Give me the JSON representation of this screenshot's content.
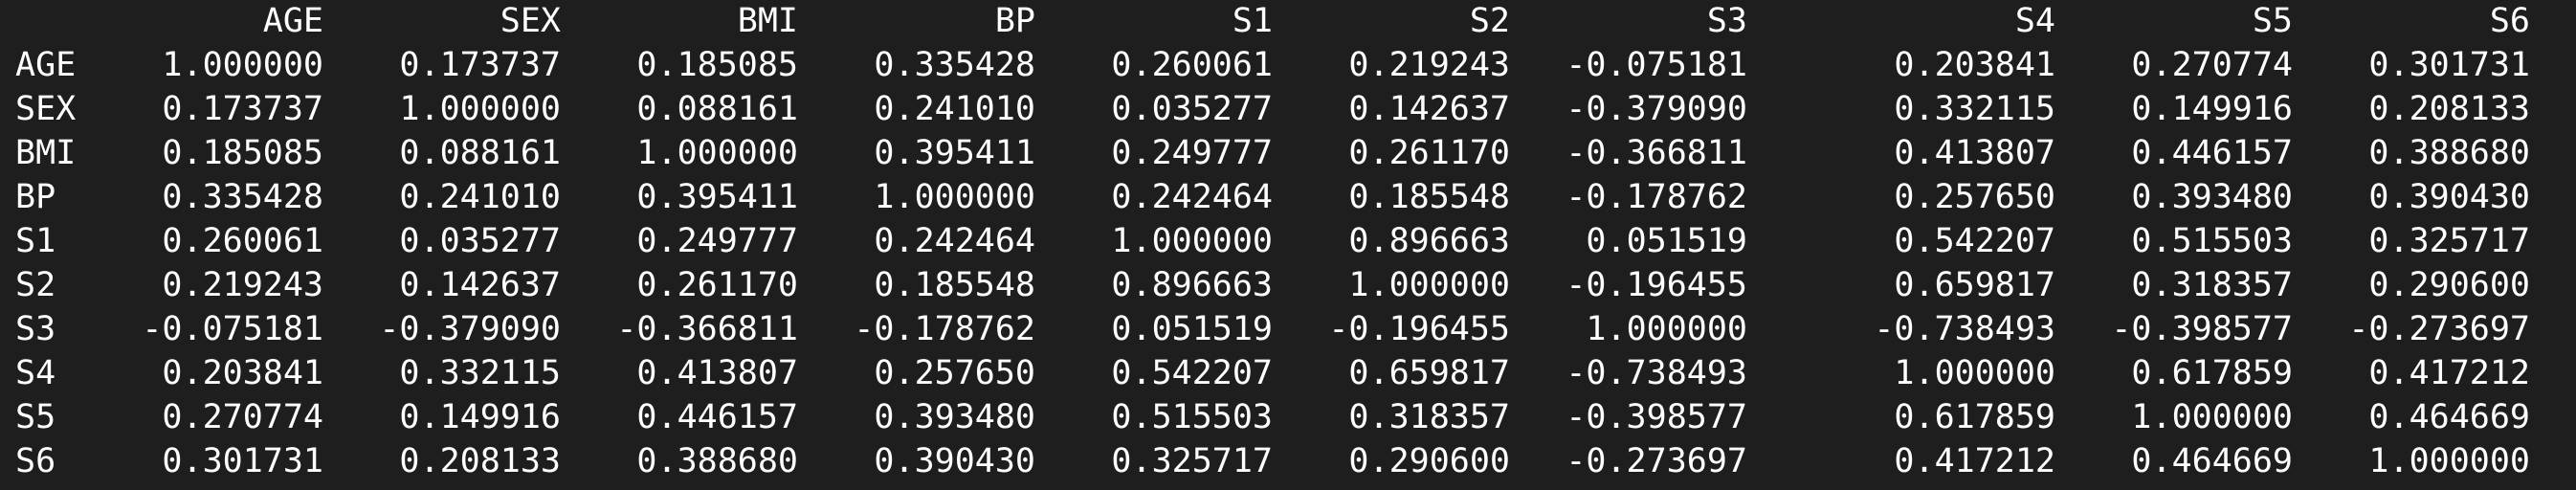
{
  "terminal": {
    "background": "#1e1e1e",
    "foreground": "#ffffff"
  },
  "table": {
    "columns": [
      "AGE",
      "SEX",
      "BMI",
      "BP",
      "S1",
      "S2",
      "S3",
      "S4",
      "S5",
      "S6"
    ],
    "rows": [
      {
        "label": "AGE",
        "values": [
          "1.000000",
          "0.173737",
          "0.185085",
          "0.335428",
          "0.260061",
          "0.219243",
          "-0.075181",
          "0.203841",
          "0.270774",
          "0.301731"
        ]
      },
      {
        "label": "SEX",
        "values": [
          "0.173737",
          "1.000000",
          "0.088161",
          "0.241010",
          "0.035277",
          "0.142637",
          "-0.379090",
          "0.332115",
          "0.149916",
          "0.208133"
        ]
      },
      {
        "label": "BMI",
        "values": [
          "0.185085",
          "0.088161",
          "1.000000",
          "0.395411",
          "0.249777",
          "0.261170",
          "-0.366811",
          "0.413807",
          "0.446157",
          "0.388680"
        ]
      },
      {
        "label": "BP",
        "values": [
          "0.335428",
          "0.241010",
          "0.395411",
          "1.000000",
          "0.242464",
          "0.185548",
          "-0.178762",
          "0.257650",
          "0.393480",
          "0.390430"
        ]
      },
      {
        "label": "S1",
        "values": [
          "0.260061",
          "0.035277",
          "0.249777",
          "0.242464",
          "1.000000",
          "0.896663",
          "0.051519",
          "0.542207",
          "0.515503",
          "0.325717"
        ]
      },
      {
        "label": "S2",
        "values": [
          "0.219243",
          "0.142637",
          "0.261170",
          "0.185548",
          "0.896663",
          "1.000000",
          "-0.196455",
          "0.659817",
          "0.318357",
          "0.290600"
        ]
      },
      {
        "label": "S3",
        "values": [
          "-0.075181",
          "-0.379090",
          "-0.366811",
          "-0.178762",
          "0.051519",
          "-0.196455",
          "1.000000",
          "-0.738493",
          "-0.398577",
          "-0.273697"
        ]
      },
      {
        "label": "S4",
        "values": [
          "0.203841",
          "0.332115",
          "0.413807",
          "0.257650",
          "0.542207",
          "0.659817",
          "-0.738493",
          "1.000000",
          "0.617859",
          "0.417212"
        ]
      },
      {
        "label": "S5",
        "values": [
          "0.270774",
          "0.149916",
          "0.446157",
          "0.393480",
          "0.515503",
          "0.318357",
          "-0.398577",
          "0.617859",
          "1.000000",
          "0.464669"
        ]
      },
      {
        "label": "S6",
        "values": [
          "0.301731",
          "0.208133",
          "0.388680",
          "0.390430",
          "0.325717",
          "0.290600",
          "-0.273697",
          "0.417212",
          "0.464669",
          "1.000000"
        ]
      }
    ]
  }
}
